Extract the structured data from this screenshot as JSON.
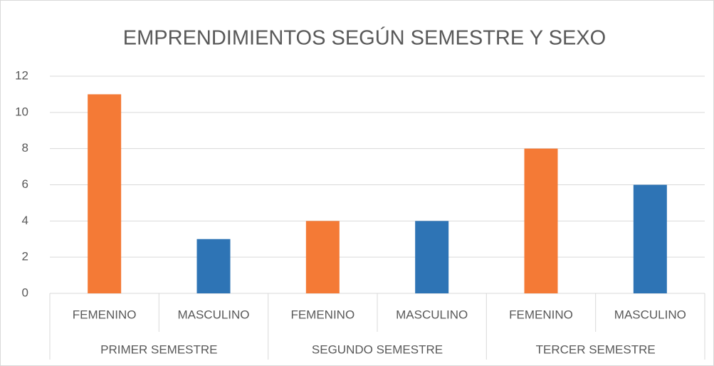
{
  "chart_data": {
    "type": "bar",
    "title": "EMPRENDIMIENTOS SEGÚN SEMESTRE Y SEXO",
    "categories": [
      "FEMENINO",
      "MASCULINO",
      "FEMENINO",
      "MASCULINO",
      "FEMENINO",
      "MASCULINO"
    ],
    "groups": [
      "PRIMER SEMESTRE",
      "SEGUNDO SEMESTRE",
      "TERCER SEMESTRE"
    ],
    "values": [
      11,
      3,
      4,
      4,
      8,
      6
    ],
    "colors": [
      "#f47a36",
      "#2e74b5",
      "#f47a36",
      "#2e74b5",
      "#f47a36",
      "#2e74b5"
    ],
    "ylim": [
      0,
      12
    ],
    "yticks": [
      0,
      2,
      4,
      6,
      8,
      10,
      12
    ],
    "grid": true
  }
}
